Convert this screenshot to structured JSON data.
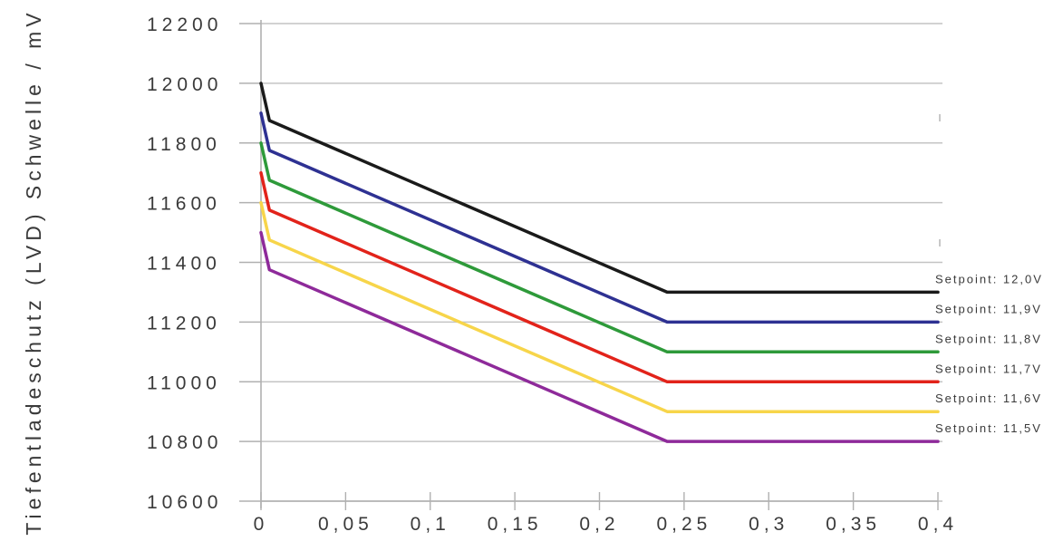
{
  "chart_data": {
    "type": "line",
    "title": "",
    "xlabel": "",
    "ylabel": "Tiefentladeschutz (LVD) Schwelle / mV",
    "xlim": [
      0,
      0.4
    ],
    "ylim": [
      10600,
      12200
    ],
    "x_ticks": [
      0,
      0.05,
      0.1,
      0.15,
      0.2,
      0.25,
      0.3,
      0.35,
      0.4
    ],
    "x_tick_labels": [
      "0",
      "0,05",
      "0,1",
      "0,15",
      "0,2",
      "0,25",
      "0,3",
      "0,35",
      "0,4"
    ],
    "y_ticks": [
      10600,
      10800,
      11000,
      11200,
      11400,
      11600,
      11800,
      12000,
      12200
    ],
    "y_tick_labels": [
      "10600",
      "10800",
      "11000",
      "11200",
      "11400",
      "11600",
      "11800",
      "12000",
      "12200"
    ],
    "grid": "horizontal",
    "legend": "right, inline labels",
    "series": [
      {
        "name": "Setpoint: 12,0V",
        "color": "#1a1a1a",
        "x": [
          0,
          0.005,
          0.24,
          0.4
        ],
        "y": [
          12000,
          11875,
          11300,
          11300
        ]
      },
      {
        "name": "Setpoint: 11,9V",
        "color": "#2e3192",
        "x": [
          0,
          0.005,
          0.24,
          0.4
        ],
        "y": [
          11900,
          11775,
          11200,
          11200
        ]
      },
      {
        "name": "Setpoint: 11,8V",
        "color": "#2e9a3a",
        "x": [
          0,
          0.005,
          0.24,
          0.4
        ],
        "y": [
          11800,
          11675,
          11100,
          11100
        ]
      },
      {
        "name": "Setpoint: 11,7V",
        "color": "#e2231a",
        "x": [
          0,
          0.005,
          0.24,
          0.4
        ],
        "y": [
          11700,
          11575,
          11000,
          11000
        ]
      },
      {
        "name": "Setpoint: 11,6V",
        "color": "#f7d54a",
        "x": [
          0,
          0.005,
          0.24,
          0.4
        ],
        "y": [
          11600,
          11475,
          10900,
          10900
        ]
      },
      {
        "name": "Setpoint: 11,5V",
        "color": "#8e2a9a",
        "x": [
          0,
          0.005,
          0.24,
          0.4
        ],
        "y": [
          11500,
          11375,
          10800,
          10800
        ]
      }
    ]
  }
}
